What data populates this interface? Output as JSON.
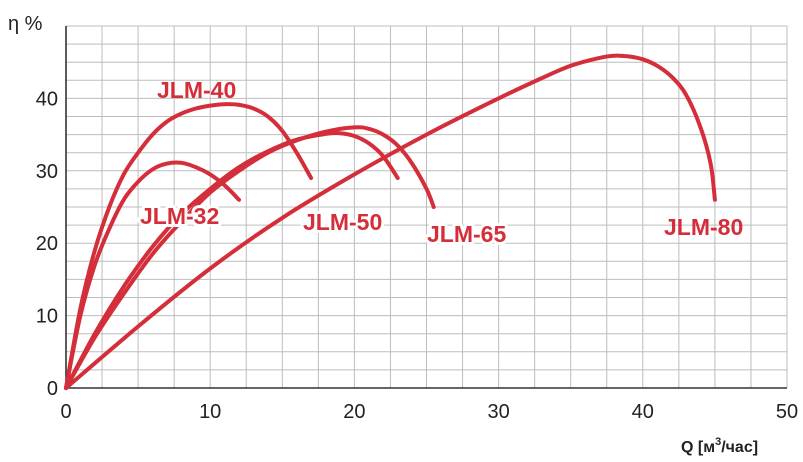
{
  "chart_data": {
    "type": "line",
    "ylabel": "η %",
    "xlabel_prefix": "Q [м",
    "xlabel_sup": "3",
    "xlabel_suffix": "/час]",
    "xlim": [
      0,
      50
    ],
    "ylim": [
      0,
      50
    ],
    "x_ticks": [
      "0",
      "10",
      "20",
      "30",
      "40",
      "50"
    ],
    "y_ticks": [
      "0",
      "10",
      "20",
      "30",
      "40"
    ],
    "grid": true,
    "line_color": "#d42e3b",
    "series": [
      {
        "name": "JLM-32",
        "points": [
          [
            0,
            0
          ],
          [
            1,
            10
          ],
          [
            2,
            17
          ],
          [
            3,
            22
          ],
          [
            4,
            26
          ],
          [
            5,
            28.5
          ],
          [
            6,
            30.2
          ],
          [
            7,
            31
          ],
          [
            8,
            31.1
          ],
          [
            9,
            30.5
          ],
          [
            10,
            29.5
          ],
          [
            11,
            28
          ],
          [
            12,
            26
          ]
        ]
      },
      {
        "name": "JLM-40",
        "points": [
          [
            0,
            0
          ],
          [
            1,
            11
          ],
          [
            2,
            19
          ],
          [
            3,
            25
          ],
          [
            4,
            29.5
          ],
          [
            5,
            32.5
          ],
          [
            6,
            35
          ],
          [
            7,
            36.8
          ],
          [
            8,
            37.9
          ],
          [
            9,
            38.6
          ],
          [
            10,
            39
          ],
          [
            11,
            39.2
          ],
          [
            12,
            39.1
          ],
          [
            13,
            38.6
          ],
          [
            14,
            37.5
          ],
          [
            15,
            35.5
          ],
          [
            16,
            32.5
          ],
          [
            17,
            29
          ]
        ]
      },
      {
        "name": "JLM-50",
        "points": [
          [
            0,
            0
          ],
          [
            2,
            7.5
          ],
          [
            4,
            14
          ],
          [
            6,
            19.5
          ],
          [
            8,
            24
          ],
          [
            10,
            27.5
          ],
          [
            12,
            30.5
          ],
          [
            14,
            32.7
          ],
          [
            16,
            34.3
          ],
          [
            18,
            35.1
          ],
          [
            19,
            35.2
          ],
          [
            20,
            34.8
          ],
          [
            21,
            33.8
          ],
          [
            22,
            32
          ],
          [
            23,
            29
          ]
        ]
      },
      {
        "name": "JLM-65",
        "points": [
          [
            0,
            0
          ],
          [
            2,
            7
          ],
          [
            4,
            13
          ],
          [
            6,
            18.5
          ],
          [
            8,
            23
          ],
          [
            10,
            27
          ],
          [
            12,
            30
          ],
          [
            14,
            32.5
          ],
          [
            16,
            34.2
          ],
          [
            18,
            35.4
          ],
          [
            20,
            36
          ],
          [
            21,
            35.8
          ],
          [
            22,
            35
          ],
          [
            23,
            33.5
          ],
          [
            24,
            31
          ],
          [
            25,
            27.5
          ],
          [
            25.5,
            25
          ]
        ]
      },
      {
        "name": "JLM-80",
        "points": [
          [
            0,
            0
          ],
          [
            5,
            8.5
          ],
          [
            10,
            16.5
          ],
          [
            15,
            23.5
          ],
          [
            20,
            29.5
          ],
          [
            25,
            35
          ],
          [
            30,
            40
          ],
          [
            33,
            42.8
          ],
          [
            35,
            44.5
          ],
          [
            37,
            45.6
          ],
          [
            38,
            45.9
          ],
          [
            39,
            45.8
          ],
          [
            40,
            45.4
          ],
          [
            41,
            44.5
          ],
          [
            42,
            43
          ],
          [
            43,
            40.5
          ],
          [
            44,
            36
          ],
          [
            44.7,
            31
          ],
          [
            45,
            26
          ]
        ]
      }
    ],
    "label_names": [
      "JLM-40",
      "JLM-32",
      "JLM-50",
      "JLM-65",
      "JLM-80"
    ]
  }
}
